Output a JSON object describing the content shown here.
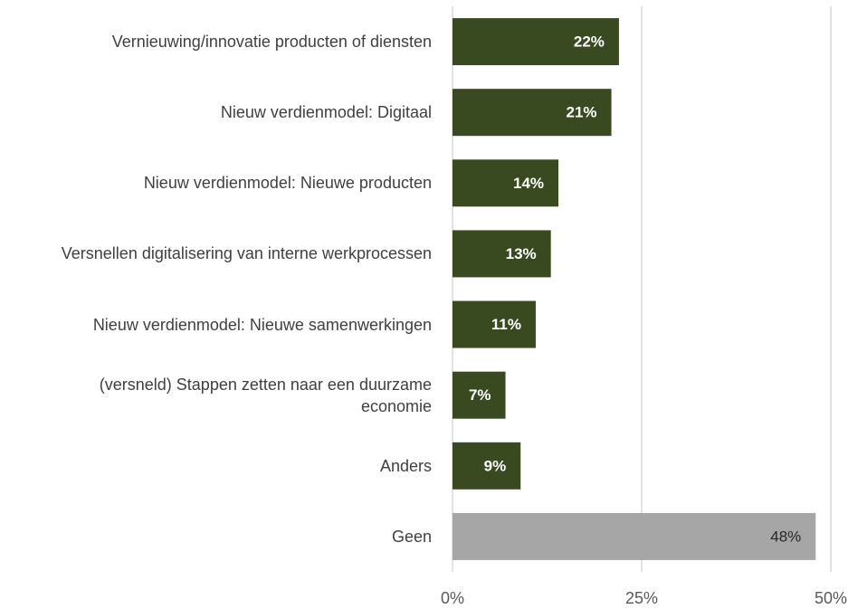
{
  "chart_data": {
    "type": "bar",
    "orientation": "horizontal",
    "categories": [
      "Vernieuwing/innovatie producten of diensten",
      "Nieuw verdienmodel: Digitaal",
      "Nieuw verdienmodel: Nieuwe producten",
      "Versnellen digitalisering van interne werkprocessen",
      "Nieuw verdienmodel: Nieuwe samenwerkingen",
      "(versneld) Stappen zetten naar een duurzame economie",
      "Anders",
      "Geen"
    ],
    "values": [
      22,
      21,
      14,
      13,
      11,
      7,
      9,
      48
    ],
    "value_labels": [
      "22%",
      "21%",
      "14%",
      "13%",
      "11%",
      "7%",
      "9%",
      "48%"
    ],
    "colors": [
      "#3a4a20",
      "#3a4a20",
      "#3a4a20",
      "#3a4a20",
      "#3a4a20",
      "#3a4a20",
      "#3a4a20",
      "#a6a6a6"
    ],
    "xlim": [
      0,
      50
    ],
    "xticks": [
      {
        "value": 0,
        "label": "0%"
      },
      {
        "value": 25,
        "label": "25%"
      },
      {
        "value": 50,
        "label": "50%"
      }
    ],
    "grid": true
  }
}
